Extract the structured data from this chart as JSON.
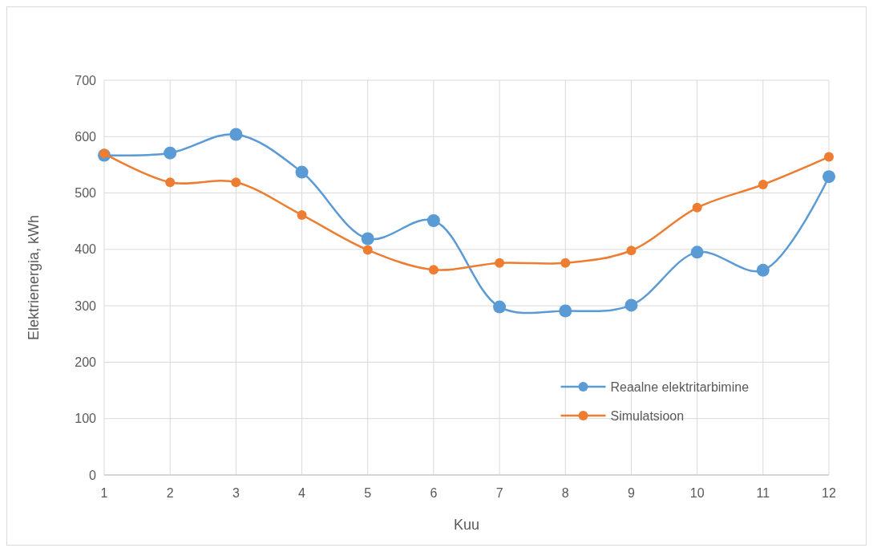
{
  "chart_data": {
    "type": "line",
    "xlabel": "Kuu",
    "ylabel": "Elektrienergia, kWh",
    "x": [
      1,
      2,
      3,
      4,
      5,
      6,
      7,
      8,
      9,
      10,
      11,
      12
    ],
    "xlim": [
      1,
      12
    ],
    "xticks": [
      1,
      2,
      3,
      4,
      5,
      6,
      7,
      8,
      9,
      10,
      11,
      12
    ],
    "ylim": [
      0,
      700
    ],
    "yticks": [
      0,
      100,
      200,
      300,
      400,
      500,
      600,
      700
    ],
    "grid": true,
    "legend": "bottom right",
    "marker": "circle",
    "line_style": "solid",
    "series": [
      {
        "name": "Reaalne elektritarbimine",
        "color": "#5b9bd5",
        "values": [
          567,
          571,
          604,
          537,
          419,
          451,
          298,
          291,
          301,
          395,
          363,
          529
        ]
      },
      {
        "name": "Simulatsioon",
        "color": "#ed7d31",
        "values": [
          570,
          519,
          519,
          461,
          399,
          364,
          376,
          376,
          398,
          474,
          515,
          564
        ]
      }
    ]
  }
}
